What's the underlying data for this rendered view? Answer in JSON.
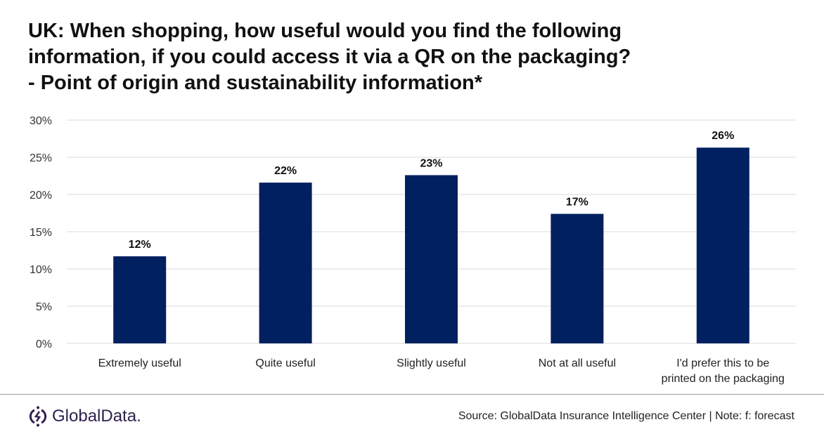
{
  "chart_data": {
    "type": "bar",
    "title": "UK: When shopping, how useful would you find the following information, if you could access it via a QR on the packaging? - Point of origin and sustainability information*",
    "categories": [
      "Extremely useful",
      "Quite useful",
      "Slightly useful",
      "Not at all useful",
      "I'd prefer this to be printed on the packaging"
    ],
    "values": [
      11.7,
      21.6,
      22.6,
      17.4,
      26.3
    ],
    "data_labels": [
      "12%",
      "22%",
      "23%",
      "17%",
      "26%"
    ],
    "yticks": [
      "0%",
      "5%",
      "10%",
      "15%",
      "20%",
      "25%",
      "30%"
    ],
    "ylim": [
      0,
      30
    ],
    "grid": true,
    "legend": "none",
    "bar_color": "#002060"
  },
  "title_lines": [
    "UK: When shopping, how useful would you find the following",
    "information, if you could access it via a QR on the packaging?",
    "- Point of origin and sustainability information*"
  ],
  "footer": {
    "logo_text": "GlobalData.",
    "logo_color": "#2e2150",
    "source": "Source: GlobalData Insurance Intelligence Center | Note: f: forecast"
  }
}
